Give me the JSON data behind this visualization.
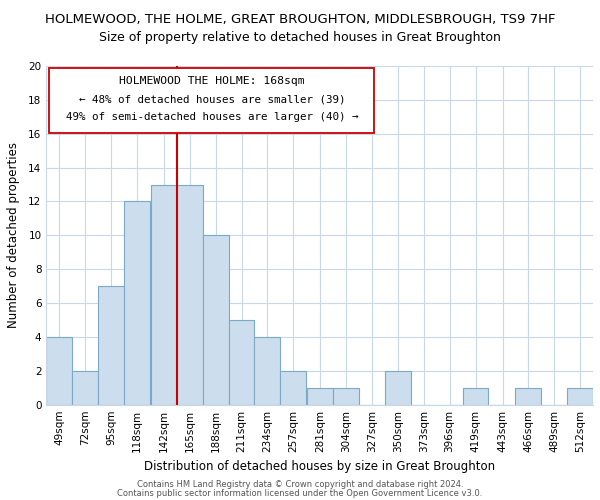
{
  "title": "HOLMEWOOD, THE HOLME, GREAT BROUGHTON, MIDDLESBROUGH, TS9 7HF",
  "subtitle": "Size of property relative to detached houses in Great Broughton",
  "xlabel": "Distribution of detached houses by size in Great Broughton",
  "ylabel": "Number of detached properties",
  "bar_color": "#ccdded",
  "bar_edge_color": "#7aaac8",
  "vline_color": "#cc0000",
  "vline_x": 165,
  "categories": [
    "49sqm",
    "72sqm",
    "95sqm",
    "118sqm",
    "142sqm",
    "165sqm",
    "188sqm",
    "211sqm",
    "234sqm",
    "257sqm",
    "281sqm",
    "304sqm",
    "327sqm",
    "350sqm",
    "373sqm",
    "396sqm",
    "419sqm",
    "443sqm",
    "466sqm",
    "489sqm",
    "512sqm"
  ],
  "bin_edges": [
    49,
    72,
    95,
    118,
    142,
    165,
    188,
    211,
    234,
    257,
    281,
    304,
    327,
    350,
    373,
    396,
    419,
    443,
    466,
    489,
    512
  ],
  "bin_width": 23,
  "values": [
    4,
    2,
    7,
    12,
    13,
    13,
    10,
    5,
    4,
    2,
    1,
    1,
    0,
    2,
    0,
    0,
    1,
    0,
    1,
    0,
    1
  ],
  "ylim": [
    0,
    20
  ],
  "yticks": [
    0,
    2,
    4,
    6,
    8,
    10,
    12,
    14,
    16,
    18,
    20
  ],
  "annotation_title": "HOLMEWOOD THE HOLME: 168sqm",
  "annotation_line1": "← 48% of detached houses are smaller (39)",
  "annotation_line2": "49% of semi-detached houses are larger (40) →",
  "footer1": "Contains HM Land Registry data © Crown copyright and database right 2024.",
  "footer2": "Contains public sector information licensed under the Open Government Licence v3.0.",
  "background_color": "#ffffff",
  "grid_color": "#c8d8e8",
  "title_fontsize": 9.5,
  "subtitle_fontsize": 9,
  "axis_label_fontsize": 8.5,
  "tick_fontsize": 7.5
}
